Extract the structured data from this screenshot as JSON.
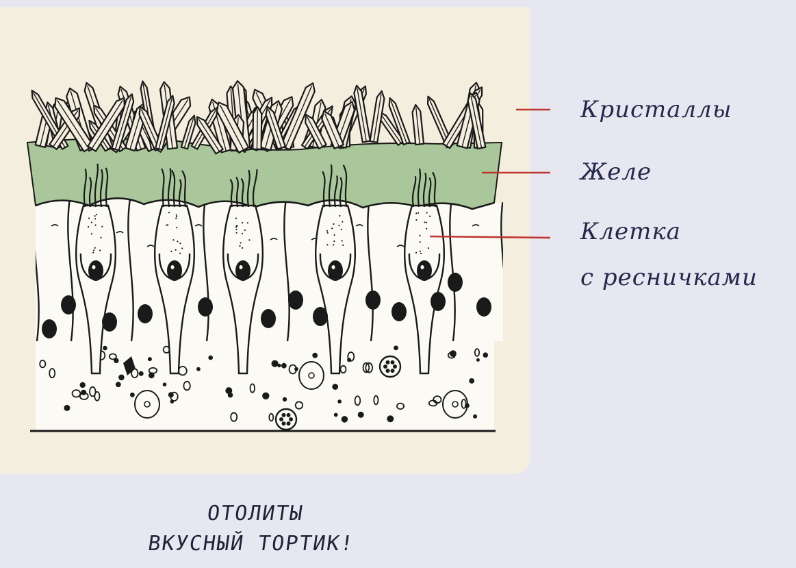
{
  "labels": {
    "crystals": "Кристаллы",
    "jelly": "Желе",
    "cell_line1": "Клетка",
    "cell_line2": "с ресничками"
  },
  "caption": {
    "line1": "ОТОЛИТЫ",
    "line2": "ВКУСНЫЙ ТОРТИК!"
  },
  "colors": {
    "background": "#e6e7f1",
    "panel": "#f4eedf",
    "jelly": "#a9c79a",
    "leader_line": "#c0332f",
    "ink": "#1a1a1a"
  }
}
